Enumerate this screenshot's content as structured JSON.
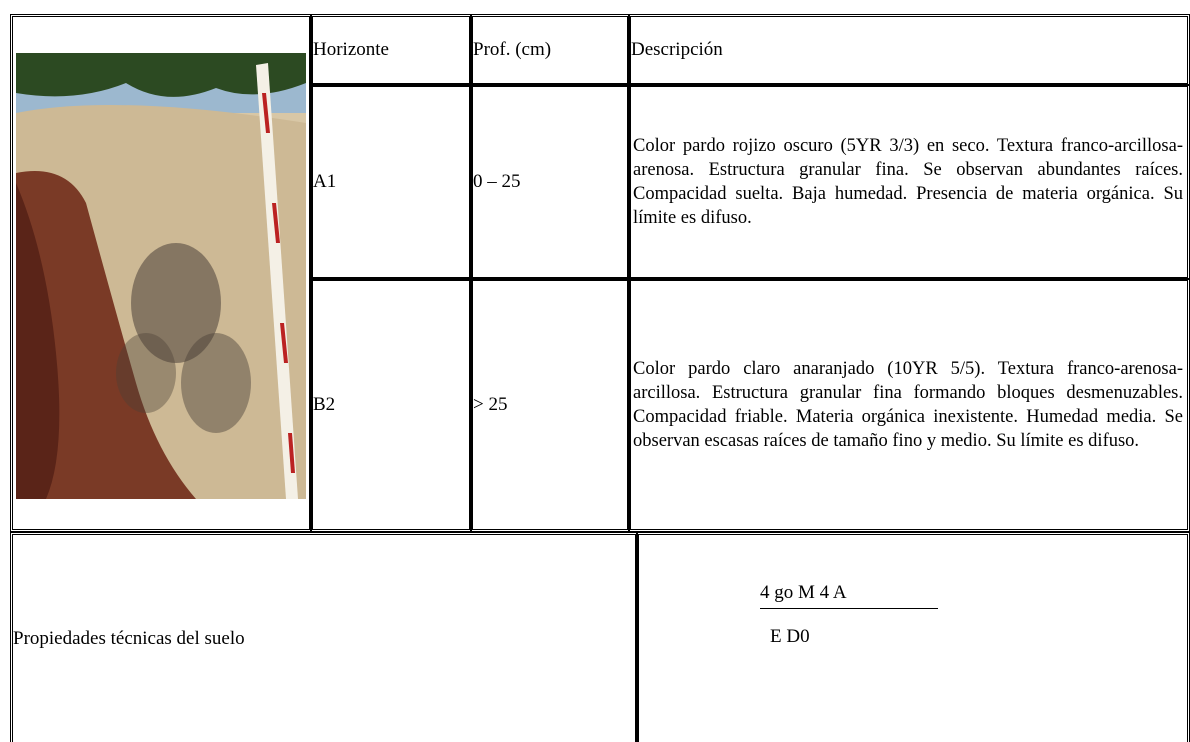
{
  "table": {
    "header": [
      "Horizonte",
      "Prof. (cm)",
      "Descripción"
    ],
    "rows": [
      [
        "A1",
        "0 – 25",
        "Color pardo rojizo oscuro (5YR 3/3) en seco. Textura franco-arcillosa-arenosa. Estructura granular fina. Se observan abundantes raíces. Compacidad suelta. Baja humedad. Presencia de materia orgánica. Su límite es difuso."
      ],
      [
        "B2",
        "> 25",
        "Color pardo claro anaranjado (10YR 5/5). Textura franco-arenosa-arcillosa. Estructura granular fina formando bloques desmenuzables. Compacidad friable. Materia orgánica inexistente. Humedad media. Se observan escasas raíces de tamaño fino y medio. Su límite es difuso."
      ]
    ]
  },
  "properties": {
    "label": "Propiedades técnicas del suelo",
    "formula_top": "4 go M 4 A",
    "formula_bottom": "E D0"
  }
}
